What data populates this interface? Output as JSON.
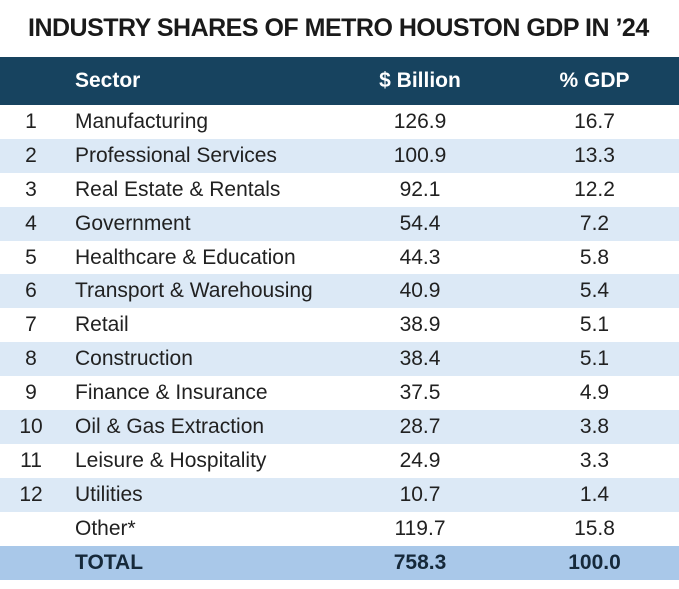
{
  "title": "INDUSTRY SHARES OF METRO HOUSTON GDP IN ’24",
  "chart_data": {
    "type": "table",
    "title": "INDUSTRY SHARES OF METRO HOUSTON GDP IN ’24",
    "header": {
      "sector": "Sector",
      "billion": "$ Billion",
      "gdp": "% GDP"
    },
    "rows": [
      {
        "rank": "1",
        "sector": "Manufacturing",
        "billion": "126.9",
        "gdp": "16.7"
      },
      {
        "rank": "2",
        "sector": "Professional Services",
        "billion": "100.9",
        "gdp": "13.3"
      },
      {
        "rank": "3",
        "sector": "Real Estate & Rentals",
        "billion": "92.1",
        "gdp": "12.2"
      },
      {
        "rank": "4",
        "sector": "Government",
        "billion": "54.4",
        "gdp": "7.2"
      },
      {
        "rank": "5",
        "sector": "Healthcare & Education",
        "billion": "44.3",
        "gdp": "5.8"
      },
      {
        "rank": "6",
        "sector": "Transport & Warehousing",
        "billion": "40.9",
        "gdp": "5.4"
      },
      {
        "rank": "7",
        "sector": "Retail",
        "billion": "38.9",
        "gdp": "5.1"
      },
      {
        "rank": "8",
        "sector": "Construction",
        "billion": "38.4",
        "gdp": "5.1"
      },
      {
        "rank": "9",
        "sector": "Finance & Insurance",
        "billion": "37.5",
        "gdp": "4.9"
      },
      {
        "rank": "10",
        "sector": "Oil & Gas Extraction",
        "billion": "28.7",
        "gdp": "3.8"
      },
      {
        "rank": "11",
        "sector": "Leisure & Hospitality",
        "billion": "24.9",
        "gdp": "3.3"
      },
      {
        "rank": "12",
        "sector": "Utilities",
        "billion": "10.7",
        "gdp": "1.4"
      },
      {
        "rank": "",
        "sector": "Other*",
        "billion": "119.7",
        "gdp": "15.8"
      }
    ],
    "total": {
      "rank": "",
      "label": "TOTAL",
      "billion": "758.3",
      "gdp": "100.0"
    }
  },
  "colors": {
    "header_bg": "#17435f",
    "header_text": "#ffffff",
    "stripe_bg": "#dce9f6",
    "total_bg": "#a9c8e9",
    "title_text": "#1a1a1a",
    "body_text": "#212121",
    "total_text": "#16293a"
  }
}
